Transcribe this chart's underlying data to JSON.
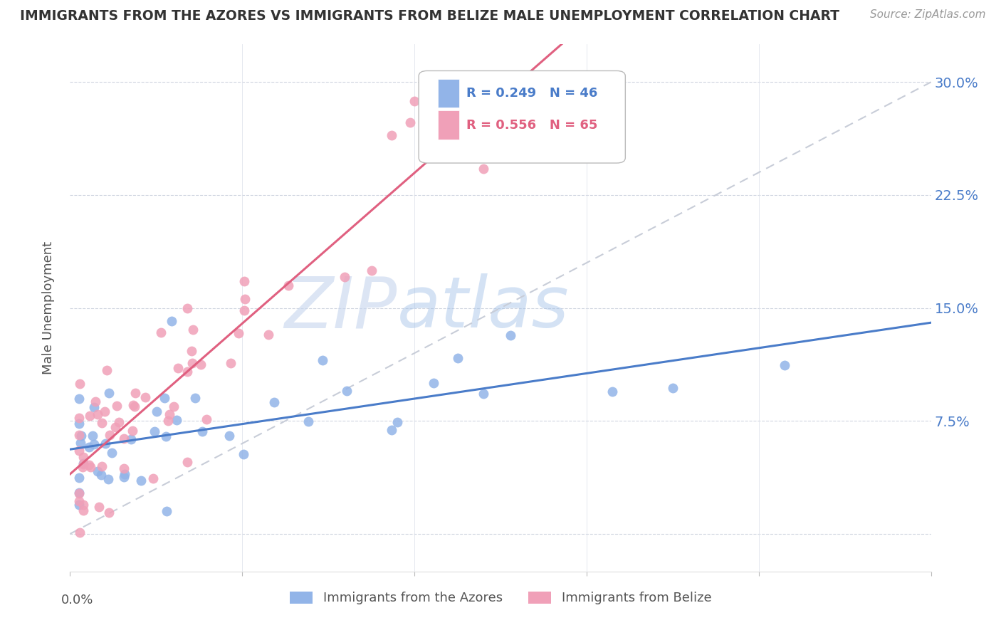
{
  "title": "IMMIGRANTS FROM THE AZORES VS IMMIGRANTS FROM BELIZE MALE UNEMPLOYMENT CORRELATION CHART",
  "source": "Source: ZipAtlas.com",
  "ylabel": "Male Unemployment",
  "legend_label_azores": "Immigrants from the Azores",
  "legend_label_belize": "Immigrants from Belize",
  "color_azores": "#92b4e8",
  "color_belize": "#f0a0b8",
  "trend_color_azores": "#4a7cc9",
  "trend_color_belize": "#e06080",
  "trend_dash_color": "#c8cdd8",
  "watermark_zip": "ZIP",
  "watermark_atlas": "atlas",
  "y_ticks": [
    0.0,
    0.075,
    0.15,
    0.225,
    0.3
  ],
  "y_tick_labels": [
    "",
    "7.5%",
    "15.0%",
    "22.5%",
    "30.0%"
  ],
  "x_lim": [
    0.0,
    0.1
  ],
  "y_lim": [
    0.0,
    0.32
  ],
  "R_azores": 0.249,
  "N_azores": 46,
  "R_belize": 0.556,
  "N_belize": 65,
  "azores_seed": 77,
  "belize_seed": 88
}
